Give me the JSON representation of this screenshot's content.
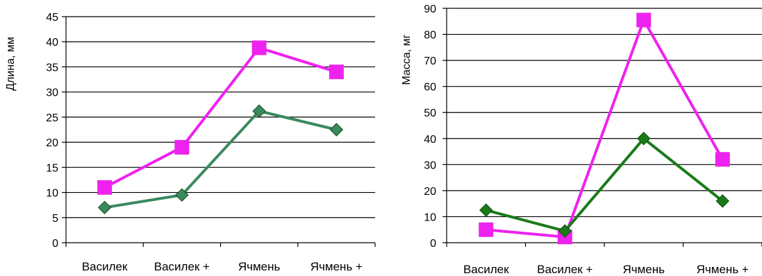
{
  "chart_data": [
    {
      "type": "line",
      "ylabel": "Длина, мм",
      "xlabel": "",
      "ylim": [
        0,
        45
      ],
      "ytick_step": 5,
      "grid": "horizontal",
      "categories": [
        "Василек",
        "Василек +",
        "Ячмень",
        "Ячмень +"
      ],
      "series": [
        {
          "values": [
            11,
            19,
            38.8,
            34
          ],
          "color": "#ee22ee",
          "marker": "square"
        },
        {
          "values": [
            7,
            9.5,
            26.2,
            22.5
          ],
          "color": "#3a8a5f",
          "marker": "diamond"
        }
      ]
    },
    {
      "type": "line",
      "ylabel": "Масса, мг",
      "xlabel": "",
      "ylim": [
        0,
        90
      ],
      "ytick_step": 10,
      "grid": "horizontal",
      "categories": [
        "Василек",
        "Василек +",
        "Ячмень",
        "Ячмень +"
      ],
      "series": [
        {
          "values": [
            5,
            2.2,
            85.5,
            32
          ],
          "color": "#ee22ee",
          "marker": "square"
        },
        {
          "values": [
            12.5,
            4.5,
            40,
            16
          ],
          "color": "#1a7a1a",
          "marker": "diamond"
        }
      ]
    }
  ]
}
